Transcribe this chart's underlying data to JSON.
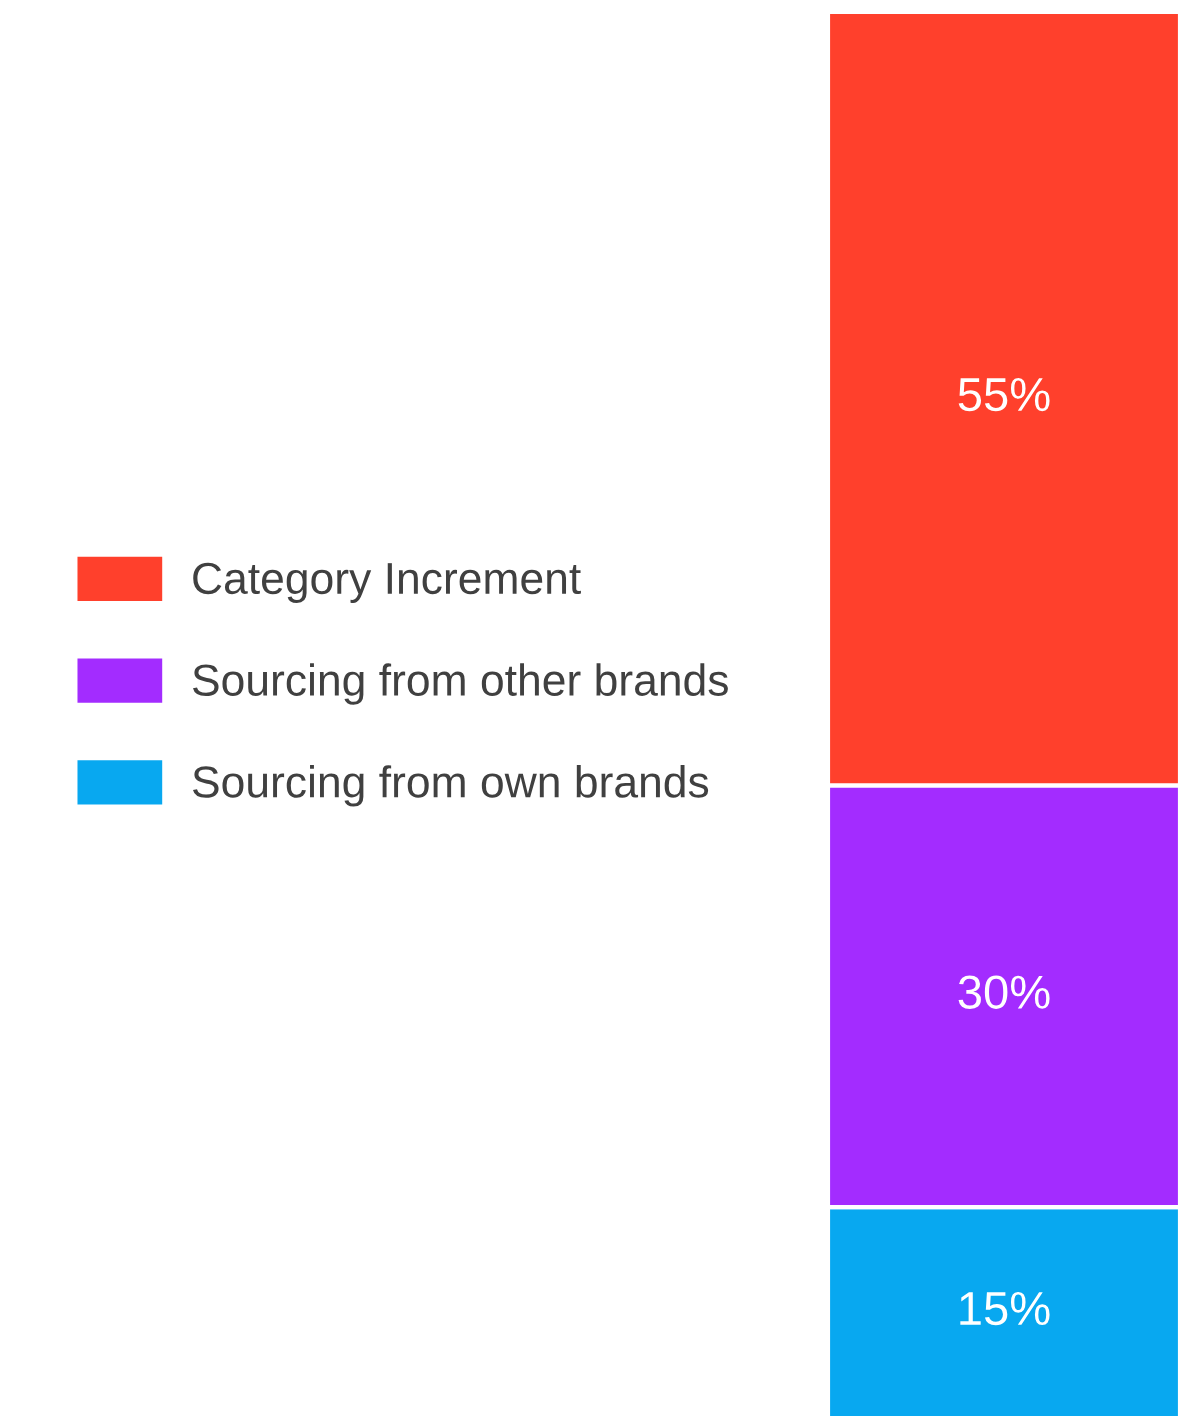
{
  "chart_data": {
    "type": "bar",
    "stacked": true,
    "categories": [
      null
    ],
    "legend": "left",
    "series": [
      {
        "name": "Sourcing from own brands",
        "color": "#08a8f0",
        "values": [
          15
        ],
        "value_labels": [
          "15%"
        ]
      },
      {
        "name": "Sourcing from other brands",
        "color": "#a32cff",
        "values": [
          30
        ],
        "value_labels": [
          "30%"
        ]
      },
      {
        "name": "Category Increment",
        "color": "#ff402c",
        "values": [
          55
        ],
        "value_labels": [
          "55%"
        ]
      }
    ]
  }
}
